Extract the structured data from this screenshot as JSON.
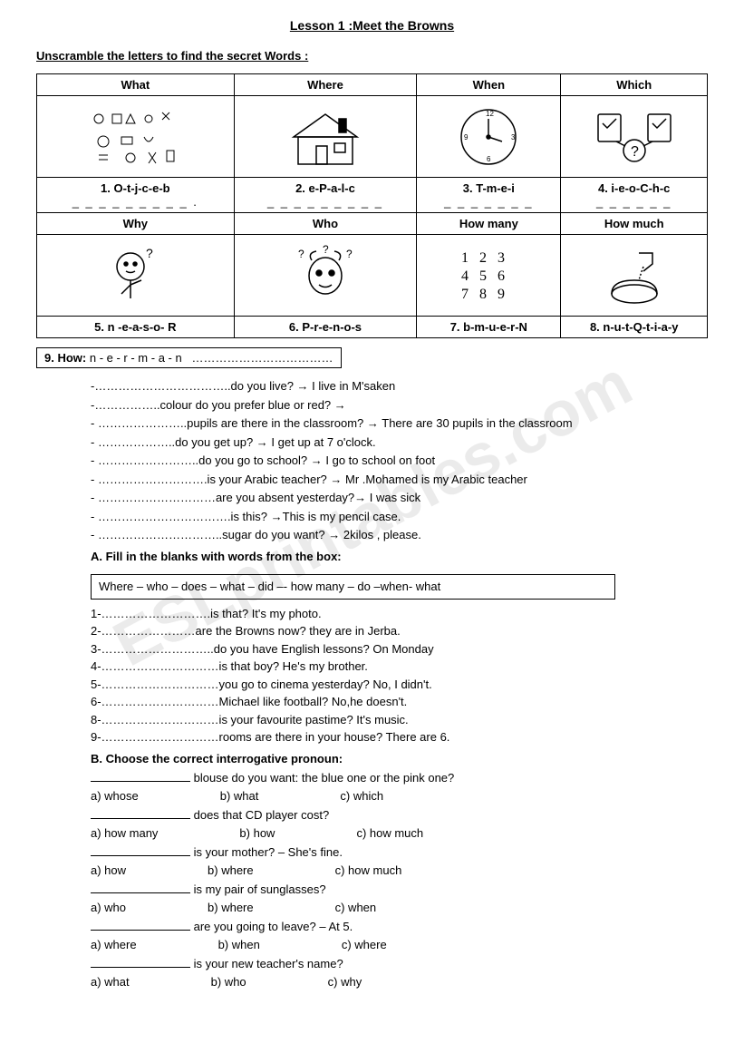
{
  "title": "Lesson 1 :Meet the Browns",
  "subtitle": "Unscramble the letters to find the secret Words :",
  "watermark": "ESLprintables.com",
  "table": {
    "headers1": [
      "What",
      "Where",
      "When",
      "Which"
    ],
    "alts1": [
      "doodle icons",
      "house",
      "clock",
      "choice folders"
    ],
    "scrambles1": [
      "1. O-t-j-c-e-b",
      "2. e-P-a-l-c",
      "3. T-m-e-i",
      "4. i-e-o-C-h-c"
    ],
    "blanks1": [
      "_ _ _ _ _ _ _ _ _ .",
      "_ _ _ _ _ _ _ _ _",
      "_ _ _ _ _ _ _",
      "_ _ _ _ _ _"
    ],
    "headers2": [
      "Why",
      "Who",
      "How many",
      "How much"
    ],
    "alts2": [
      "thinking boy",
      "confused person",
      "numbers",
      "pouring cup"
    ],
    "scrambles2": [
      "5. n -e-a-s-o- R",
      "6. P-r-e-n-o-s",
      "7. b-m-u-e-r-N",
      "8. n-u-t-Q-t-i-a-y"
    ]
  },
  "row9_label": "9. How:",
  "row9_scramble": "n - e - r - m - a - n",
  "row9_dots": "………………………………",
  "qa": [
    "-……………………………..do you live?  → I live in M'saken",
    "-……………..colour do you prefer blue or red? →",
    "- …………………..pupils are there in the classroom?   → There are 30 pupils in the classroom",
    "- ………………..do you get up?  → I get up at 7 o'clock.",
    "- ……………………..do you go to school? → I  go to school on foot",
    "- ……………………….is your Arabic teacher?  → Mr .Mohamed is my Arabic teacher",
    "- …………………………are you absent yesterday?→ I was sick",
    "- …………………………….is this? →This is my pencil case.",
    "- …………………………..sugar do you want?  → 2kilos , please."
  ],
  "sectionA_hdr": "A. Fill in the blanks with words from the box:",
  "wordbox": "Where – who – does – what – did –- how many – do –when- what",
  "fillA": [
    "1-……………………….is that? It's my photo.",
    "2-……………………are the Browns now? they are in Jerba.",
    "3-………………………..do you have English lessons? On Monday",
    "4-…………………………is that boy? He's my brother.",
    "5-…………………………you go to cinema yesterday? No, I didn't.",
    "6-…………………………Michael like football? No,he doesn't.",
    "8-…………………………is your favourite pastime? It's music.",
    "9-…………………………rooms are there in your house? There are 6."
  ],
  "sectionB_hdr": "B. Choose the correct interrogative pronoun:",
  "choiceB": [
    {
      "q": " blouse do you want: the blue one or the pink one?",
      "opts": [
        "a) whose",
        "b) what",
        "c) which"
      ]
    },
    {
      "q": " does that CD player cost?",
      "opts": [
        "a) how many",
        "b) how",
        "c) how much"
      ]
    },
    {
      "q": " is your mother? – She's fine.",
      "opts": [
        "a) how",
        "b) where",
        "c) how much"
      ]
    },
    {
      "q": " is my pair of sunglasses?",
      "opts": [
        "a) who",
        "b) where",
        "c) when"
      ]
    },
    {
      "q": " are you going to leave? – At 5.",
      "opts": [
        "a) where",
        "b) when",
        "c) where"
      ]
    },
    {
      "q": " is your new teacher's name?",
      "opts": [
        "a) what",
        "b) who",
        "c) why"
      ]
    }
  ]
}
